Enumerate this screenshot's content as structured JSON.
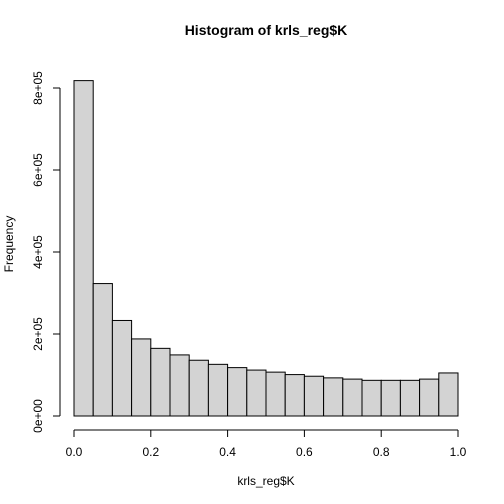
{
  "chart_data": {
    "type": "bar",
    "title": "Histogram of krls_reg$K",
    "xlabel": "krls_reg$K",
    "ylabel": "Frequency",
    "bin_width": 0.05,
    "bins": [
      {
        "start": 0.0,
        "end": 0.05,
        "count": 818000
      },
      {
        "start": 0.05,
        "end": 0.1,
        "count": 323000
      },
      {
        "start": 0.1,
        "end": 0.15,
        "count": 233000
      },
      {
        "start": 0.15,
        "end": 0.2,
        "count": 188000
      },
      {
        "start": 0.2,
        "end": 0.25,
        "count": 165000
      },
      {
        "start": 0.25,
        "end": 0.3,
        "count": 149000
      },
      {
        "start": 0.3,
        "end": 0.35,
        "count": 136000
      },
      {
        "start": 0.35,
        "end": 0.4,
        "count": 126000
      },
      {
        "start": 0.4,
        "end": 0.45,
        "count": 118000
      },
      {
        "start": 0.45,
        "end": 0.5,
        "count": 112000
      },
      {
        "start": 0.5,
        "end": 0.55,
        "count": 107000
      },
      {
        "start": 0.55,
        "end": 0.6,
        "count": 101000
      },
      {
        "start": 0.6,
        "end": 0.65,
        "count": 97000
      },
      {
        "start": 0.65,
        "end": 0.7,
        "count": 93000
      },
      {
        "start": 0.7,
        "end": 0.75,
        "count": 90000
      },
      {
        "start": 0.75,
        "end": 0.8,
        "count": 87000
      },
      {
        "start": 0.8,
        "end": 0.85,
        "count": 87000
      },
      {
        "start": 0.85,
        "end": 0.9,
        "count": 87000
      },
      {
        "start": 0.9,
        "end": 0.95,
        "count": 90000
      },
      {
        "start": 0.95,
        "end": 1.0,
        "count": 105000
      }
    ],
    "xlim": [
      0,
      1
    ],
    "ylim": [
      0,
      820000
    ],
    "x_ticks": [
      {
        "value": 0.0,
        "label": "0.0"
      },
      {
        "value": 0.2,
        "label": "0.2"
      },
      {
        "value": 0.4,
        "label": "0.4"
      },
      {
        "value": 0.6,
        "label": "0.6"
      },
      {
        "value": 0.8,
        "label": "0.8"
      },
      {
        "value": 1.0,
        "label": "1.0"
      }
    ],
    "y_ticks": [
      {
        "value": 0,
        "label": "0e+00"
      },
      {
        "value": 200000,
        "label": "2e+05"
      },
      {
        "value": 400000,
        "label": "4e+05"
      },
      {
        "value": 600000,
        "label": "6e+05"
      },
      {
        "value": 800000,
        "label": "8e+05"
      }
    ],
    "grid": false,
    "bar_color": "#d3d3d3",
    "border_color": "#000000"
  }
}
